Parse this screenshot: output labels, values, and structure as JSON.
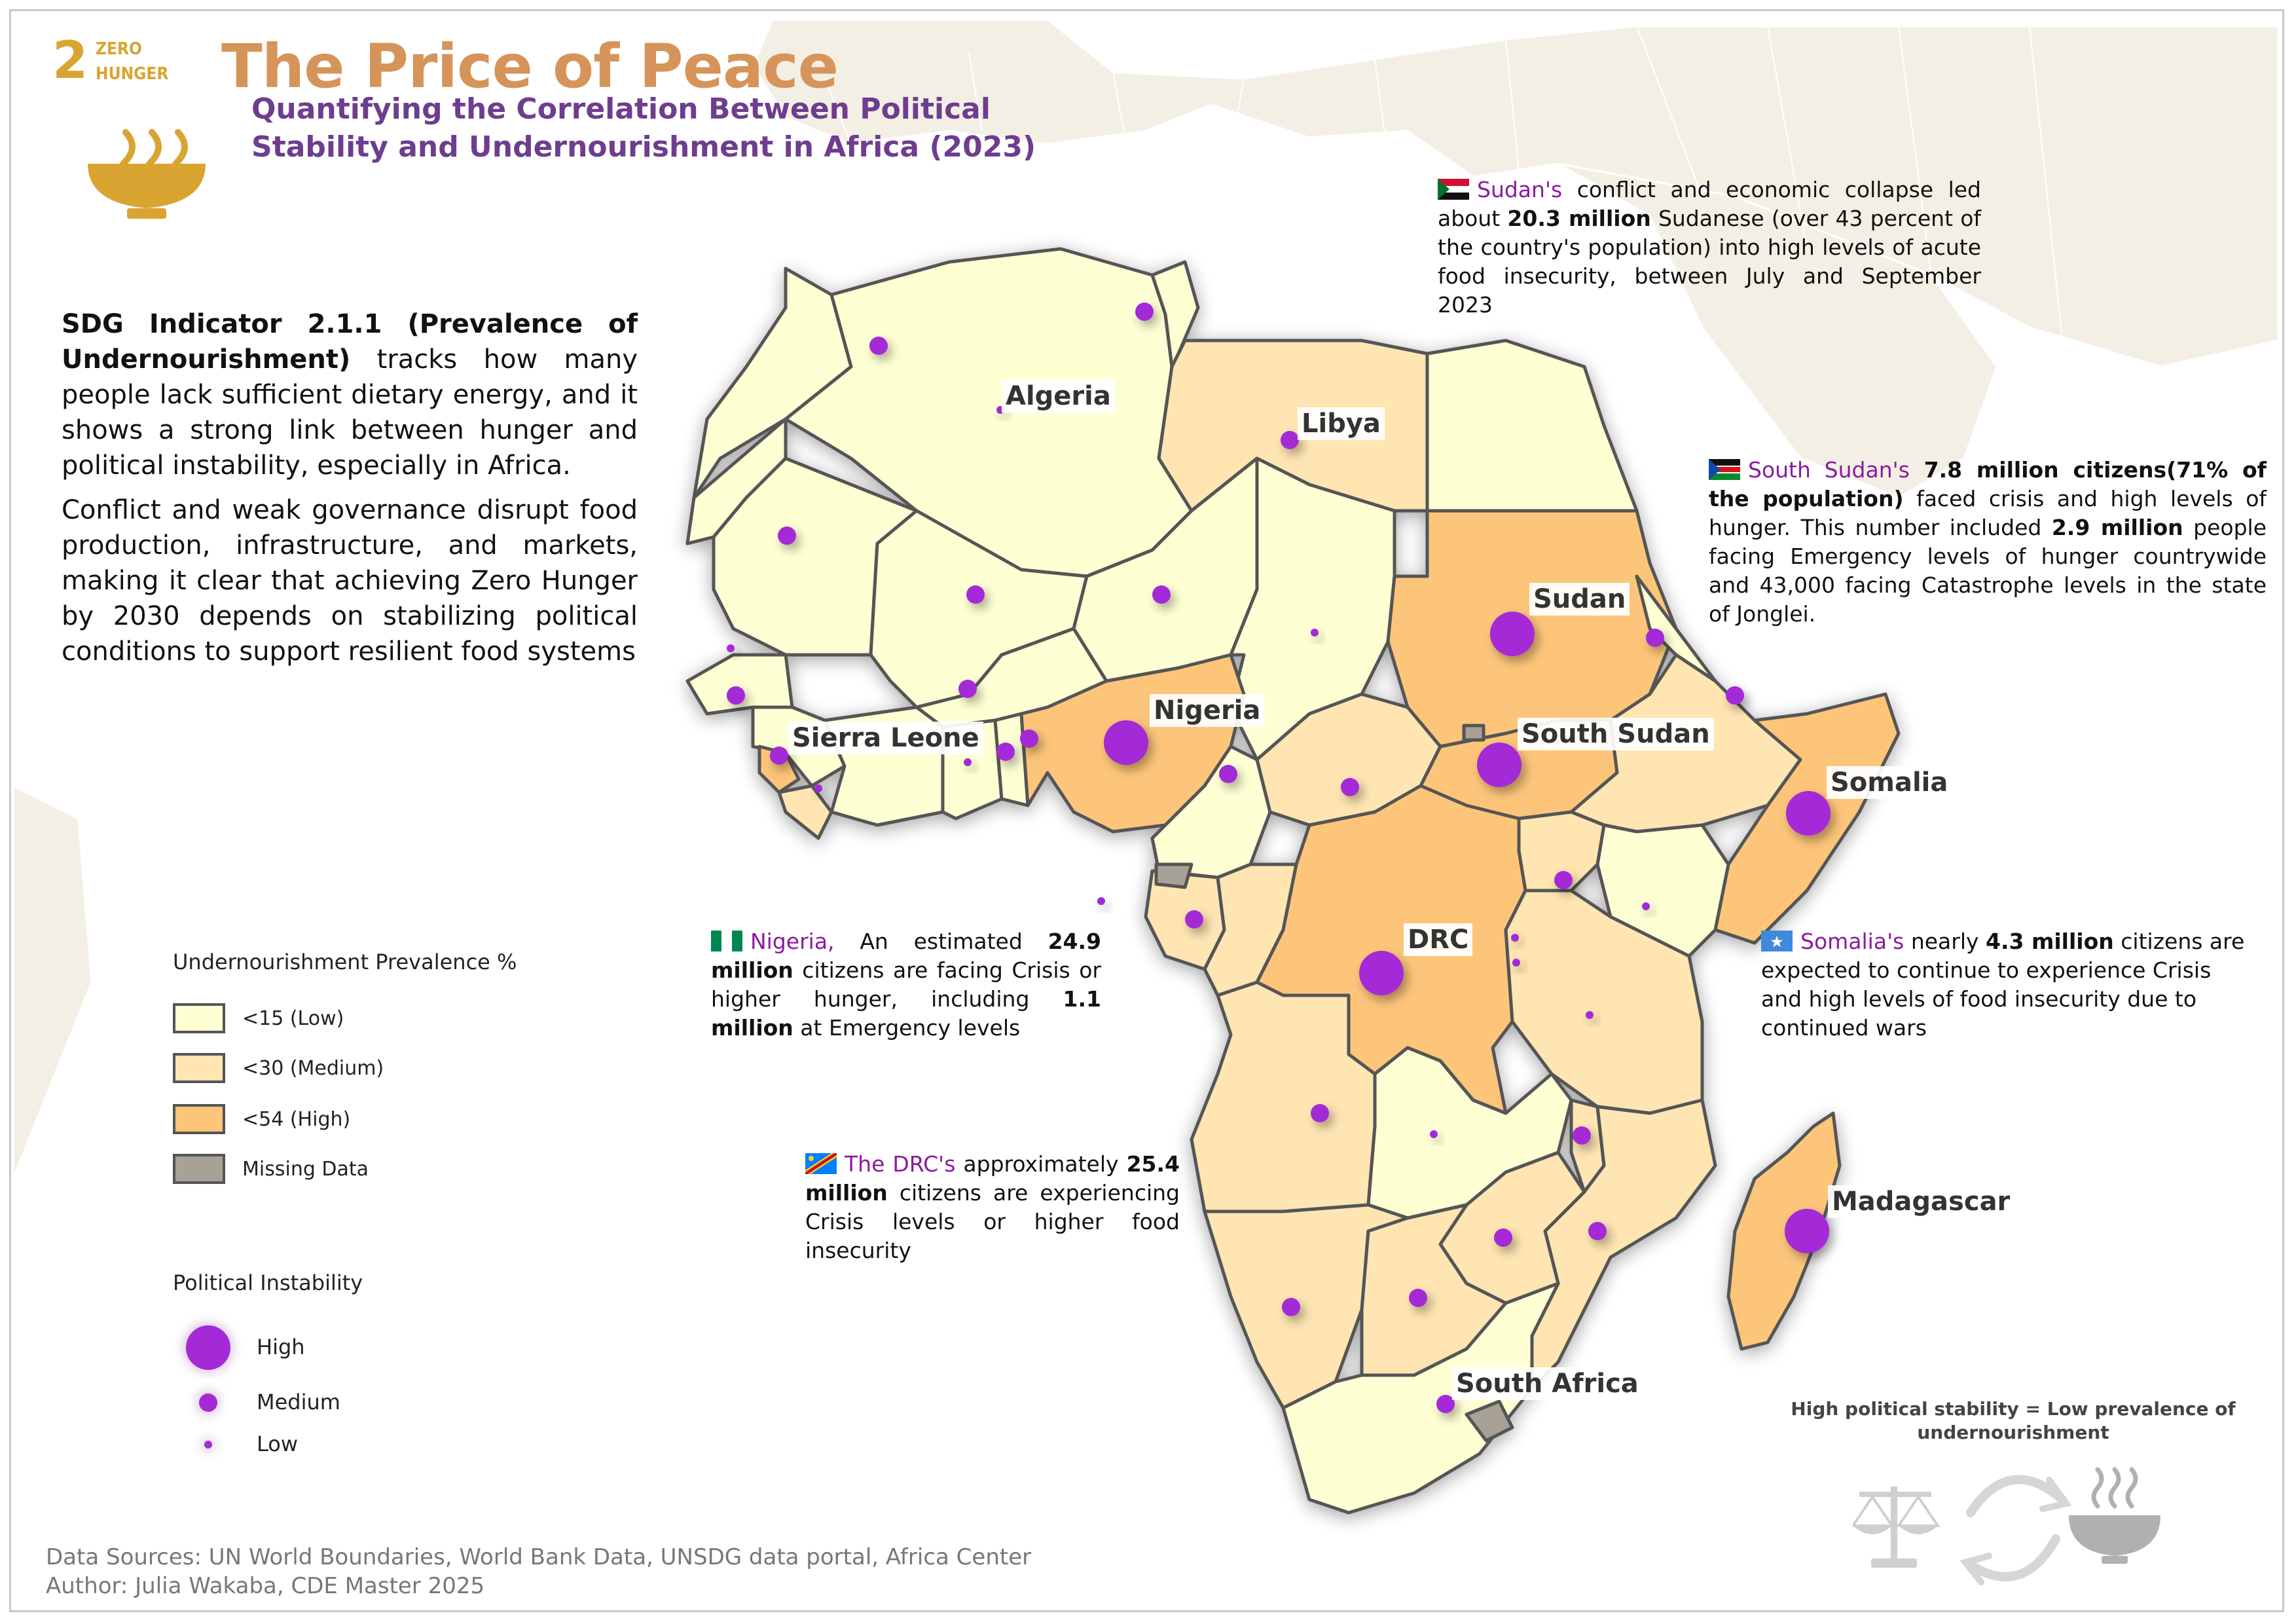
{
  "header": {
    "sdg_number": "2",
    "sdg_label_line1": "ZERO",
    "sdg_label_line2": "HUNGER",
    "title": "The Price of Peace",
    "subtitle_line1": "Quantifying the Correlation Between Political",
    "subtitle_line2": "Stability and Undernourishment in Africa (2023)"
  },
  "intro": {
    "p1_bold": "SDG Indicator 2.1.1 (Prevalence of Undernourishment)",
    "p1_rest": " tracks how many people lack sufficient dietary energy, and it shows a strong link between hunger and political instability, especially in Africa.",
    "p2": "Conflict and weak governance disrupt food production, infrastructure, and markets, making it clear that achieving Zero Hunger by 2030 depends on stabilizing political conditions to support resilient food systems"
  },
  "legend": {
    "prevalence_title": "Undernourishment Prevalence %",
    "prevalence_items": [
      {
        "label": "<15 (Low)",
        "color": "#ffffd4"
      },
      {
        "label": "<30 (Medium)",
        "color": "#fee5b2"
      },
      {
        "label": "<54 (High)",
        "color": "#fdc57a"
      },
      {
        "label": "Missing Data",
        "color": "#a8a196"
      }
    ],
    "instability_title": "Political Instability",
    "instability_items": [
      {
        "label": "High",
        "level": "high"
      },
      {
        "label": "Medium",
        "level": "medium"
      },
      {
        "label": "Low",
        "level": "low"
      }
    ],
    "marker_color": "#a32ad6"
  },
  "map": {
    "country_labels": [
      "Algeria",
      "Libya",
      "Sudan",
      "South Sudan",
      "Somalia",
      "Nigeria",
      "Sierra Leone",
      "DRC",
      "Madagascar",
      "South Africa"
    ]
  },
  "callouts": {
    "sudan": {
      "flag": "sudan-flag-icon",
      "country": "Sudan's",
      "t1": " conflict and economic collapse led about ",
      "b1": "20.3 million",
      "t2": " Sudanese (over 43 percent of the country's population) into high levels of acute food insecurity, between July and September 2023"
    },
    "south_sudan": {
      "flag": "south-sudan-flag-icon",
      "country": "South Sudan's",
      "b1": " 7.8 million citizens(71% of the population)",
      "t1": " faced crisis and high levels of hunger. This number included ",
      "b2": "2.9 million",
      "t2": " people facing Emergency levels of hunger countrywide and 43,000 facing Catastrophe levels in the state of Jonglei."
    },
    "nigeria": {
      "flag": "nigeria-flag-icon",
      "country": "Nigeria,",
      "t1": " An estimated ",
      "b1": "24.9 million",
      "t2": " citizens are facing Crisis or higher hunger, including ",
      "b2": "1.1 million",
      "t3": " at Emergency levels"
    },
    "drc": {
      "flag": "drc-flag-icon",
      "country": "The DRC's",
      "t1": " approximately ",
      "b1": "25.4 million",
      "t2": " citizens are experiencing Crisis levels or higher food insecurity"
    },
    "somalia": {
      "flag": "somalia-flag-icon",
      "country": "Somalia's",
      "t1": " nearly ",
      "b1": "4.3 million",
      "t2": " citizens are expected to continue to experience Crisis and high levels of food insecurity due to continued wars"
    }
  },
  "footer": {
    "stability_note": "High political stability = Low prevalence of undernourishment",
    "sources": "Data Sources: UN World Boundaries, World Bank Data, UNSDG data portal, Africa Center",
    "author": "Author: Julia Wakaba, CDE Master 2025"
  },
  "colors": {
    "title": "#d6945a",
    "subtitle": "#6e3d8f",
    "sdg": "#d9a432",
    "country_name": "#8a1b9e",
    "border": "#555555",
    "basemap": "#f4efe4"
  }
}
